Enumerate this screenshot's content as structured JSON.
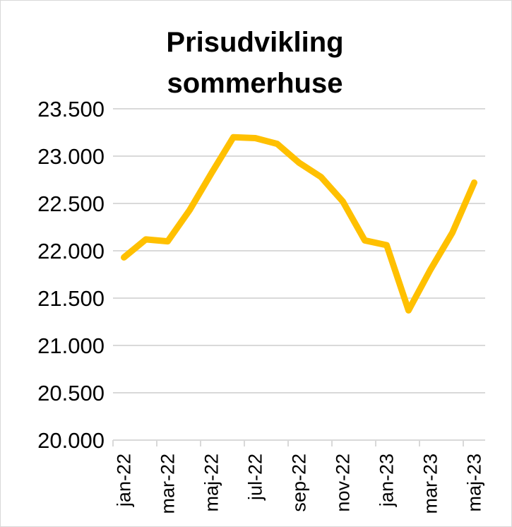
{
  "chart_data": {
    "type": "line",
    "title_lines": [
      "Prisudvikling",
      "sommerhuse"
    ],
    "xlabel": "",
    "ylabel": "",
    "ylim": [
      20000,
      23500
    ],
    "yticks": [
      "20.000",
      "20.500",
      "21.000",
      "21.500",
      "22.000",
      "22.500",
      "23.000",
      "23.500"
    ],
    "ytick_values": [
      20000,
      20500,
      21000,
      21500,
      22000,
      22500,
      23000,
      23500
    ],
    "categories": [
      "jan-22",
      "feb-22",
      "mar-22",
      "apr-22",
      "maj-22",
      "jun-22",
      "jul-22",
      "aug-22",
      "sep-22",
      "okt-22",
      "nov-22",
      "dec-22",
      "jan-23",
      "feb-23",
      "mar-23",
      "apr-23",
      "maj-23"
    ],
    "xtick_labels": [
      "jan-22",
      "mar-22",
      "maj-22",
      "jul-22",
      "sep-22",
      "nov-22",
      "jan-23",
      "mar-23",
      "maj-23"
    ],
    "xtick_label_indices": [
      0,
      2,
      4,
      6,
      8,
      10,
      12,
      14,
      16
    ],
    "grid": true,
    "legend": "none",
    "series": [
      {
        "color": "#FFC000",
        "values": [
          21930,
          22120,
          22100,
          22430,
          22820,
          23200,
          23190,
          23130,
          22930,
          22780,
          22520,
          22110,
          22060,
          21370,
          21800,
          22190,
          22720
        ]
      }
    ]
  }
}
